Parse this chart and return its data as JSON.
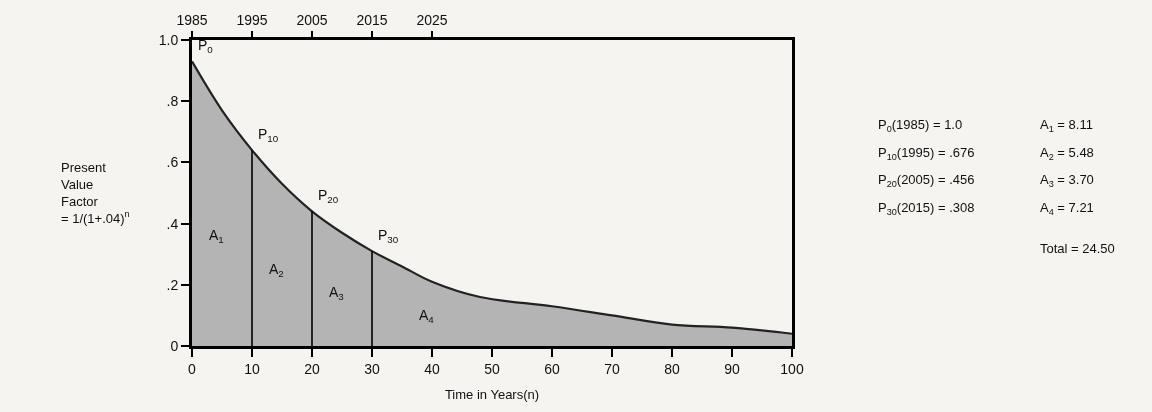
{
  "chart_data": {
    "type": "area",
    "xlabel": "Time in Years(n)",
    "ylabel": "Present Value Factor = 1/(1+.04)$^{n}$",
    "series": [
      {
        "color": "#b4b4b4",
        "x": [
          0,
          5,
          10,
          15,
          20,
          25,
          30,
          35,
          40,
          48,
          60,
          70,
          80,
          90,
          100
        ],
        "values": [
          0.93,
          0.77,
          0.64,
          0.53,
          0.44,
          0.37,
          0.31,
          0.26,
          0.21,
          0.16,
          0.13,
          0.1,
          0.07,
          0.06,
          0.04
        ]
      }
    ],
    "xlim": [
      0,
      100
    ],
    "xticks": [
      0,
      10,
      20,
      30,
      40,
      50,
      60,
      70,
      80,
      90,
      100
    ],
    "ylim": [
      0,
      1.0
    ],
    "yticks": [
      0,
      {
        "value": 0.2,
        "label": ".2"
      },
      {
        "value": 0.4,
        "label": ".4"
      },
      {
        "value": 0.6,
        "label": ".6"
      },
      {
        "value": 0.8,
        "label": ".8"
      },
      {
        "value": 1.0,
        "label": "1.0"
      }
    ],
    "x2lim": [
      1985,
      2085
    ],
    "x2ticks": [
      1985,
      1995,
      2005,
      2015,
      2025
    ],
    "ref_lines": [
      {
        "axis": "x",
        "value": 10,
        "color": "#000000"
      },
      {
        "axis": "x",
        "value": 20,
        "color": "#000000"
      },
      {
        "axis": "x",
        "value": 30,
        "color": "#000000"
      }
    ],
    "grid": false,
    "annotations": [
      {
        "text": "P$_{0}$",
        "x": 0,
        "y": 0.93
      },
      {
        "text": "P$_{10}$",
        "x": 10,
        "y": 0.64
      },
      {
        "text": "P$_{20}$",
        "x": 20,
        "y": 0.44
      },
      {
        "text": "P$_{30}$",
        "x": 30,
        "y": 0.31
      },
      "A$_{1}$",
      "A$_{2}$",
      "A$_{3}$",
      "A$_{4}$",
      "P$_{0}$(1985) = 1.0",
      "P$_{10}$(1995) = .676",
      "P$_{20}$(2005) = .456",
      "P$_{30}$(2015) = .308",
      "A$_{1}$ = 8.11",
      "A$_{2}$ = 5.48",
      "A$_{3}$ = 3.70",
      "A$_{4}$ = 7.21",
      "Total = 24.50"
    ]
  }
}
